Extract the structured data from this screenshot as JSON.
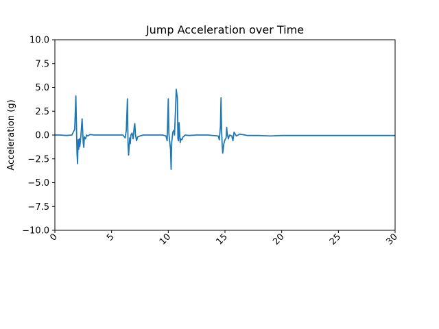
{
  "chart_data": {
    "type": "line",
    "title": "Jump Acceleration over Time",
    "xlabel": "",
    "ylabel": "Acceleration (g)",
    "xlim": [
      0,
      30
    ],
    "ylim": [
      -10,
      10
    ],
    "x_ticks": [
      0,
      5,
      10,
      15,
      20,
      25,
      30
    ],
    "x_tick_labels": [
      "0",
      "5",
      "10",
      "15",
      "20",
      "25",
      "30"
    ],
    "y_ticks": [
      -10,
      -7.5,
      -5,
      -2.5,
      0,
      2.5,
      5,
      7.5,
      10
    ],
    "y_tick_labels": [
      "−10.0",
      "−7.5",
      "−5.0",
      "−2.5",
      "0.0",
      "2.5",
      "5.0",
      "7.5",
      "10.0"
    ],
    "grid": false,
    "legend": "none",
    "line_color": "#1f77b4",
    "series": [
      {
        "x": [
          0,
          0.5,
          1.0,
          1.5,
          1.75,
          1.85,
          1.95,
          2.0,
          2.05,
          2.1,
          2.15,
          2.2,
          2.3,
          2.4,
          2.5,
          2.55,
          2.6,
          2.7,
          2.8,
          2.9,
          3.1,
          3.5,
          4.0,
          5.0,
          6.0,
          6.2,
          6.3,
          6.4,
          6.45,
          6.5,
          6.55,
          6.6,
          6.65,
          6.7,
          6.8,
          6.9,
          7.0,
          7.05,
          7.1,
          7.2,
          7.3,
          7.5,
          7.8,
          8.5,
          9.5,
          9.8,
          9.9,
          10.0,
          10.05,
          10.1,
          10.2,
          10.25,
          10.3,
          10.4,
          10.5,
          10.55,
          10.6,
          10.65,
          10.7,
          10.8,
          10.85,
          10.9,
          10.95,
          11.05,
          11.1,
          11.2,
          11.3,
          11.5,
          11.8,
          12.5,
          13.5,
          14.4,
          14.5,
          14.6,
          14.65,
          14.7,
          14.75,
          14.8,
          14.9,
          15.0,
          15.1,
          15.15,
          15.2,
          15.3,
          15.4,
          15.6,
          15.7,
          15.8,
          16.0,
          16.3,
          17.0,
          18.0,
          19.0,
          20.0,
          22.0,
          24.0,
          26.0,
          28.0,
          30.0
        ],
        "y": [
          0.0,
          0.0,
          -0.05,
          0.0,
          0.6,
          4.1,
          -1.8,
          -3.0,
          -0.5,
          -1.5,
          -0.4,
          -1.2,
          0.0,
          1.7,
          -0.8,
          -1.3,
          -0.2,
          -0.4,
          0.0,
          -0.1,
          0.05,
          0.0,
          0.0,
          0.0,
          0.0,
          -0.3,
          0.5,
          3.8,
          -1.0,
          -2.1,
          -1.2,
          -0.3,
          -0.9,
          0.0,
          0.2,
          -0.4,
          0.9,
          1.2,
          0.1,
          -0.6,
          -0.2,
          -0.1,
          0.0,
          0.0,
          0.0,
          -0.1,
          -0.6,
          3.8,
          0.2,
          -0.4,
          -1.5,
          -3.6,
          -0.8,
          0.3,
          0.5,
          0.0,
          1.5,
          3.0,
          4.8,
          3.9,
          -0.4,
          -0.6,
          1.3,
          -0.8,
          -0.4,
          -0.5,
          -0.2,
          0.0,
          -0.05,
          0.0,
          0.0,
          -0.1,
          -0.5,
          0.9,
          3.9,
          0.5,
          -1.0,
          -1.9,
          -0.9,
          -0.5,
          -0.3,
          0.8,
          0.1,
          -0.4,
          0.0,
          -0.1,
          -0.6,
          0.3,
          -0.1,
          0.1,
          -0.05,
          -0.05,
          -0.1,
          -0.05,
          -0.05,
          -0.05,
          -0.05,
          -0.05,
          -0.05
        ]
      }
    ]
  }
}
